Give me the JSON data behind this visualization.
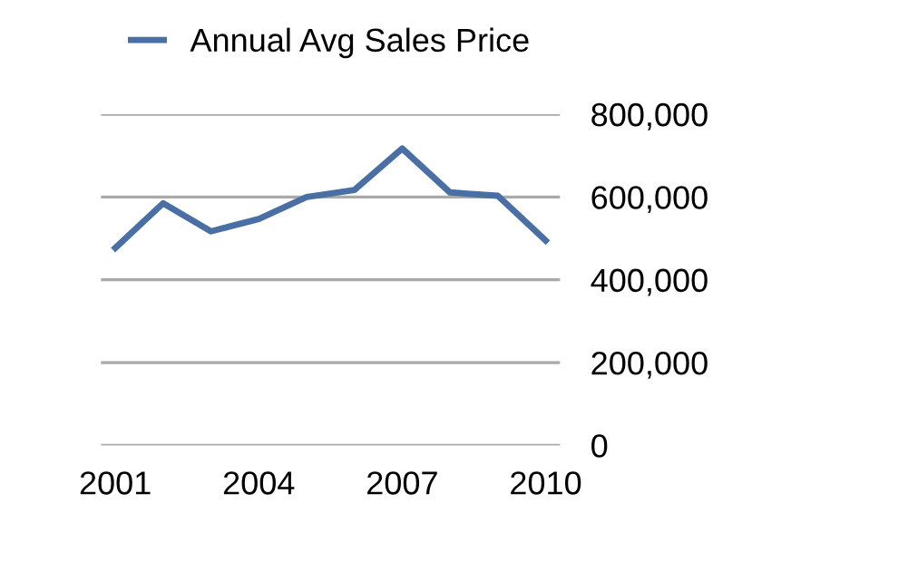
{
  "chart_data": {
    "type": "line",
    "categories": [
      "2001",
      null,
      null,
      "2004",
      null,
      null,
      "2007",
      null,
      null,
      "2010"
    ],
    "series": [
      {
        "name": "Annual Avg Sales Price",
        "color": "#4a6fa5",
        "values": [
          477000,
          585000,
          517000,
          547000,
          600000,
          617000,
          717000,
          611000,
          603000,
          495000
        ]
      }
    ],
    "ylim": [
      0,
      800000
    ],
    "yticks": [
      {
        "value": 0,
        "label": "0"
      },
      {
        "value": 200000,
        "label": "200,000"
      },
      {
        "value": 400000,
        "label": "400,000"
      },
      {
        "value": 600000,
        "label": "600,000"
      },
      {
        "value": 800000,
        "label": "800,000"
      }
    ],
    "grid": "y",
    "legend": "top",
    "marker": "none",
    "line_style": "solid"
  }
}
